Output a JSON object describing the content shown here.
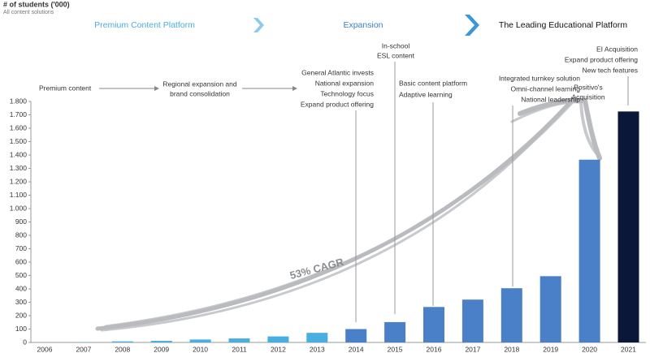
{
  "chart_data": {
    "type": "bar",
    "ylabel": "# of students ('000)",
    "subtitle": "All content solutions",
    "phases": [
      "Premium Content Platform",
      "Expansion",
      "The Leading Educational Platform"
    ],
    "categories": [
      "2006",
      "2007",
      "2008",
      "2009",
      "2010",
      "2011",
      "2012",
      "2013",
      "2014",
      "2015",
      "2016",
      "2017",
      "2018",
      "2019",
      "2020",
      "2021"
    ],
    "values": [
      0,
      2,
      8,
      12,
      22,
      30,
      45,
      72,
      100,
      152,
      265,
      320,
      405,
      495,
      1365,
      1725
    ],
    "colors": [
      "#4aaee0",
      "#4aaee0",
      "#4aaee0",
      "#4aaee0",
      "#4aaee0",
      "#4aaee0",
      "#4aaee0",
      "#4aaee0",
      "#4a80c8",
      "#4a80c8",
      "#4a80c8",
      "#4a80c8",
      "#4a80c8",
      "#4a80c8",
      "#4a80c8",
      "#0b1738"
    ],
    "ylim": [
      0,
      1800
    ],
    "yticks": [
      0,
      100,
      200,
      300,
      400,
      500,
      600,
      700,
      800,
      900,
      {
        "value": 1000,
        "label": "1.000"
      },
      {
        "value": 1100,
        "label": "1.100"
      },
      {
        "value": 1200,
        "label": "1.200"
      },
      {
        "value": 1300,
        "label": "1.300"
      },
      {
        "value": 1400,
        "label": "1.400"
      },
      {
        "value": 1500,
        "label": "1.500"
      },
      {
        "value": 1600,
        "label": "1.600"
      },
      {
        "value": 1700,
        "label": "1.700"
      },
      {
        "value": 1800,
        "label": "1.800"
      }
    ],
    "cagr": "53% CAGR",
    "annotations": [
      [
        "Premium content"
      ],
      [
        "Regional expansion and",
        "brand consolidation"
      ],
      [
        "General Atlantic invests",
        "National expansion",
        "Technology focus",
        "Expand product offering"
      ],
      [
        "In-school",
        "ESL content"
      ],
      [
        "Basic content platform",
        "Adaptive learning"
      ],
      [
        "Integrated turnkey solution",
        "Omni-channel learning",
        "National leadership"
      ],
      [
        "Positivo's",
        "Acquisition"
      ],
      [
        "EI Acquisition",
        "Expand product offering",
        "New tech features"
      ]
    ]
  }
}
